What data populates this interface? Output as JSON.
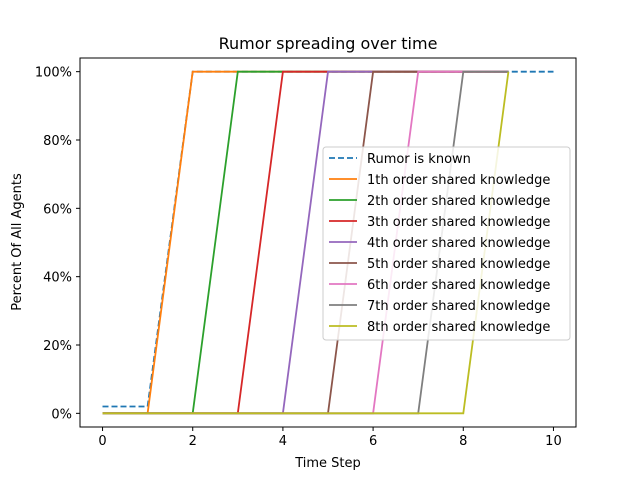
{
  "chart_data": {
    "type": "line",
    "title": "Rumor spreading over time",
    "xlabel": "Time Step",
    "ylabel": "Percent Of All Agents",
    "xlim": [
      -0.5,
      10.5
    ],
    "ylim": [
      -4,
      104
    ],
    "xticks": [
      0,
      2,
      4,
      6,
      8,
      10
    ],
    "yticks": [
      0,
      20,
      40,
      60,
      80,
      100
    ],
    "ytick_labels": [
      "0%",
      "20%",
      "40%",
      "60%",
      "80%",
      "100%"
    ],
    "grid": false,
    "legend_position": "center-right",
    "series": [
      {
        "name": "Rumor is known",
        "color": "#1f77b4",
        "dashed": true,
        "x": [
          0,
          1,
          2,
          3,
          4,
          5,
          6,
          7,
          8,
          9,
          10
        ],
        "y": [
          2,
          2,
          100,
          100,
          100,
          100,
          100,
          100,
          100,
          100,
          100
        ]
      },
      {
        "name": "1th order shared knowledge",
        "color": "#ff7f0e",
        "dashed": false,
        "x": [
          0,
          1,
          2,
          3,
          4,
          5,
          6,
          7,
          8,
          9
        ],
        "y": [
          0,
          0,
          100,
          100,
          100,
          100,
          100,
          100,
          100,
          100
        ]
      },
      {
        "name": "2th order shared knowledge",
        "color": "#2ca02c",
        "dashed": false,
        "x": [
          0,
          1,
          2,
          3,
          4,
          5,
          6,
          7,
          8,
          9
        ],
        "y": [
          0,
          0,
          0,
          100,
          100,
          100,
          100,
          100,
          100,
          100
        ]
      },
      {
        "name": "3th order shared knowledge",
        "color": "#d62728",
        "dashed": false,
        "x": [
          0,
          1,
          2,
          3,
          4,
          5,
          6,
          7,
          8,
          9
        ],
        "y": [
          0,
          0,
          0,
          0,
          100,
          100,
          100,
          100,
          100,
          100
        ]
      },
      {
        "name": "4th order shared knowledge",
        "color": "#9467bd",
        "dashed": false,
        "x": [
          0,
          1,
          2,
          3,
          4,
          5,
          6,
          7,
          8,
          9
        ],
        "y": [
          0,
          0,
          0,
          0,
          0,
          100,
          100,
          100,
          100,
          100
        ]
      },
      {
        "name": "5th order shared knowledge",
        "color": "#8c564b",
        "dashed": false,
        "x": [
          0,
          1,
          2,
          3,
          4,
          5,
          6,
          7,
          8,
          9
        ],
        "y": [
          0,
          0,
          0,
          0,
          0,
          0,
          100,
          100,
          100,
          100
        ]
      },
      {
        "name": "6th order shared knowledge",
        "color": "#e377c2",
        "dashed": false,
        "x": [
          0,
          1,
          2,
          3,
          4,
          5,
          6,
          7,
          8,
          9
        ],
        "y": [
          0,
          0,
          0,
          0,
          0,
          0,
          0,
          100,
          100,
          100
        ]
      },
      {
        "name": "7th order shared knowledge",
        "color": "#7f7f7f",
        "dashed": false,
        "x": [
          0,
          1,
          2,
          3,
          4,
          5,
          6,
          7,
          8,
          9
        ],
        "y": [
          0,
          0,
          0,
          0,
          0,
          0,
          0,
          0,
          100,
          100
        ]
      },
      {
        "name": "8th order shared knowledge",
        "color": "#bcbd22",
        "dashed": false,
        "x": [
          0,
          1,
          2,
          3,
          4,
          5,
          6,
          7,
          8,
          9
        ],
        "y": [
          0,
          0,
          0,
          0,
          0,
          0,
          0,
          0,
          0,
          100
        ]
      }
    ]
  }
}
